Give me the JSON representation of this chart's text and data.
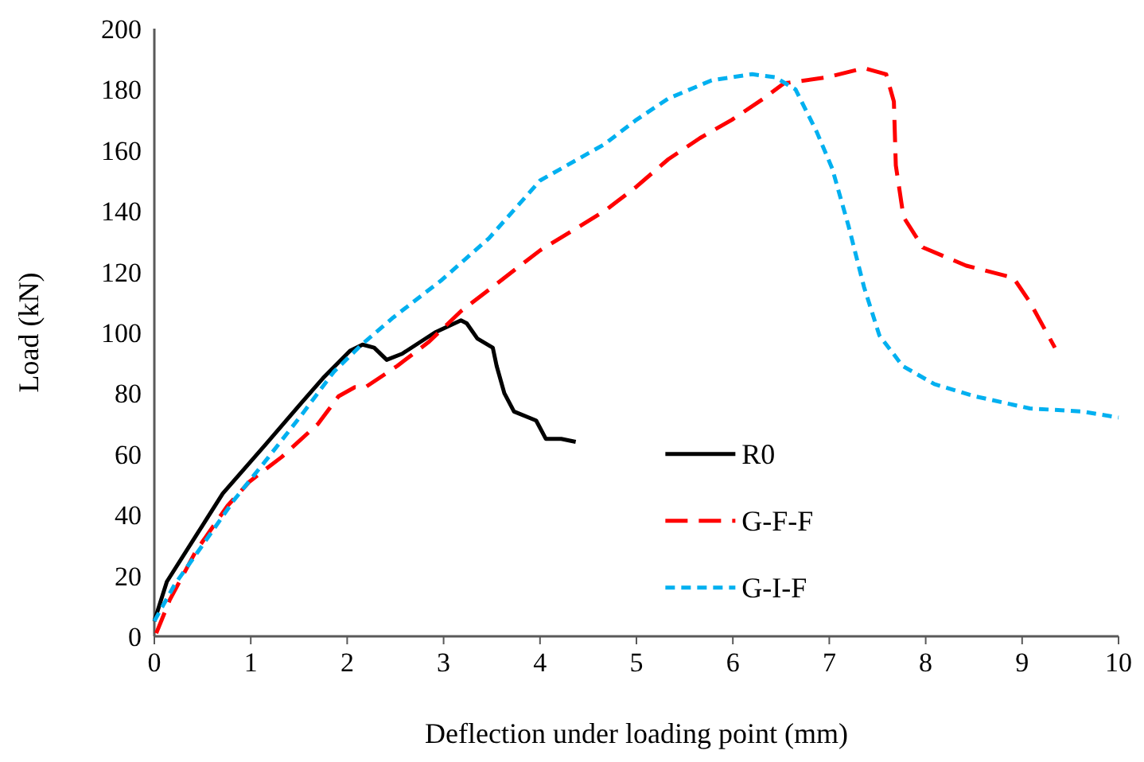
{
  "chart_data": {
    "type": "line",
    "xlabel": "Deflection under loading point (mm)",
    "ylabel": "Load (kN)",
    "xlim": [
      0,
      10
    ],
    "ylim": [
      0,
      200
    ],
    "xticks": [
      0,
      1,
      2,
      3,
      4,
      5,
      6,
      7,
      8,
      9,
      10
    ],
    "yticks": [
      0,
      20,
      40,
      60,
      80,
      100,
      120,
      140,
      160,
      180,
      200
    ],
    "grid": false,
    "legend": "right",
    "marker": "none",
    "series": [
      {
        "name": "R0",
        "color": "#000000",
        "line_style": "solid",
        "x": [
          0,
          0.13,
          0.43,
          0.71,
          1.15,
          1.53,
          1.75,
          2.03,
          2.16,
          2.28,
          2.41,
          2.57,
          2.91,
          3.18,
          3.24,
          3.35,
          3.51,
          3.55,
          3.63,
          3.73,
          3.96,
          4.06,
          4.22,
          4.37
        ],
        "values": [
          5,
          18,
          33,
          47,
          63,
          77,
          85,
          94,
          96,
          95,
          91,
          93,
          100,
          104,
          103,
          98,
          95,
          89,
          80,
          74,
          71,
          65,
          65,
          64
        ]
      },
      {
        "name": "G-F-F",
        "color": "#ff0000",
        "line_style": "dashed",
        "x": [
          0.02,
          0.16,
          0.43,
          0.76,
          0.99,
          1.32,
          1.7,
          1.91,
          2.08,
          2.19,
          2.52,
          2.85,
          3.18,
          4,
          4.67,
          5,
          5.33,
          5.66,
          5.99,
          6.32,
          6.53,
          6.98,
          7.36,
          7.59,
          7.67,
          7.69,
          7.77,
          7.97,
          8.42,
          8.91,
          9.08,
          9.34
        ],
        "values": [
          1,
          12,
          28,
          43,
          51,
          59,
          70,
          79,
          82,
          82,
          89,
          97,
          107,
          127,
          140,
          148,
          157,
          164,
          170,
          177,
          182,
          184,
          187,
          185,
          176,
          155,
          138,
          128,
          122,
          118,
          110,
          95
        ]
      },
      {
        "name": "G-I-F",
        "color": "#00b0f0",
        "line_style": "dotted",
        "x": [
          0,
          0.21,
          0.5,
          0.83,
          1.16,
          1.53,
          1.86,
          2.15,
          2.48,
          2.97,
          3.47,
          4,
          4.67,
          5,
          5.33,
          5.78,
          6.2,
          6.44,
          6.65,
          6.87,
          7.03,
          7.2,
          7.36,
          7.52,
          7.76,
          8.09,
          8.51,
          9.08,
          9.62,
          10
        ],
        "values": [
          5,
          17,
          30,
          45,
          58,
          73,
          87,
          96,
          105,
          117,
          131,
          150,
          162,
          170,
          177,
          183,
          185,
          184,
          180,
          166,
          154,
          135,
          115,
          99,
          89,
          83,
          79,
          75,
          74,
          72
        ]
      }
    ]
  }
}
